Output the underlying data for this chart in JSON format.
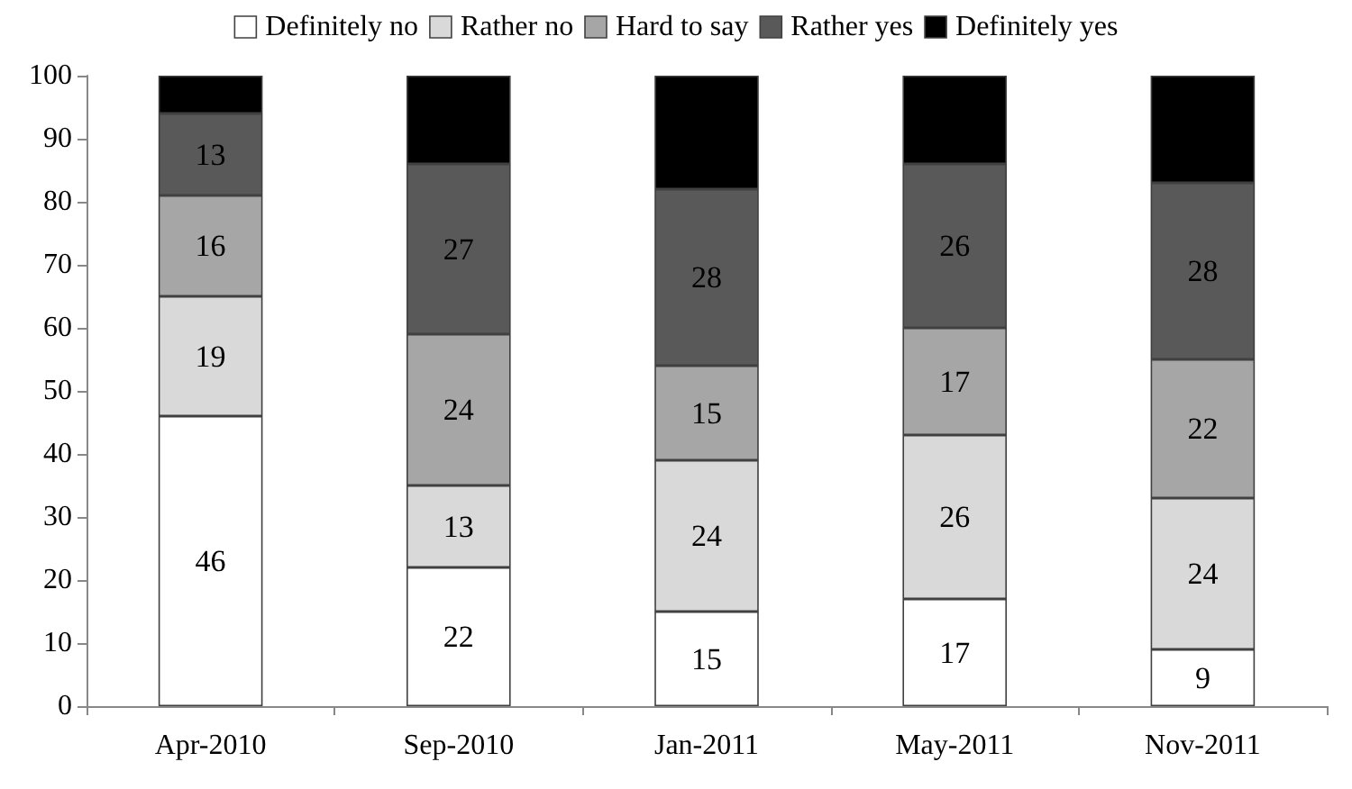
{
  "chart_data": {
    "type": "bar",
    "stacked": true,
    "categories": [
      "Apr-2010",
      "Sep-2010",
      "Jan-2011",
      "May-2011",
      "Nov-2011"
    ],
    "series": [
      {
        "name": "Definitely no",
        "color": "#ffffff",
        "values": [
          46,
          22,
          15,
          17,
          9
        ],
        "value_labels": [
          "46",
          "22",
          "15",
          "17",
          "9"
        ]
      },
      {
        "name": "Rather no",
        "color": "#d9d9d9",
        "values": [
          19,
          13,
          24,
          26,
          24
        ],
        "value_labels": [
          "19",
          "13",
          "24",
          "26",
          "24"
        ]
      },
      {
        "name": "Hard to say",
        "color": "#a6a6a6",
        "values": [
          16,
          24,
          15,
          17,
          22
        ],
        "value_labels": [
          "16",
          "24",
          "15",
          "17",
          "22"
        ]
      },
      {
        "name": "Rather yes",
        "color": "#595959",
        "values": [
          13,
          27,
          28,
          26,
          28
        ],
        "value_labels": [
          "13",
          "27",
          "28",
          "26",
          "28"
        ]
      },
      {
        "name": "Definitely yes",
        "color": "#000000",
        "values": [
          6,
          14,
          18,
          14,
          17
        ],
        "value_labels": [
          null,
          null,
          null,
          null,
          null
        ]
      }
    ],
    "ylim": [
      0,
      100
    ],
    "yticks": [
      0,
      10,
      20,
      30,
      40,
      50,
      60,
      70,
      80,
      90,
      100
    ],
    "grid": false,
    "legend": "top"
  }
}
